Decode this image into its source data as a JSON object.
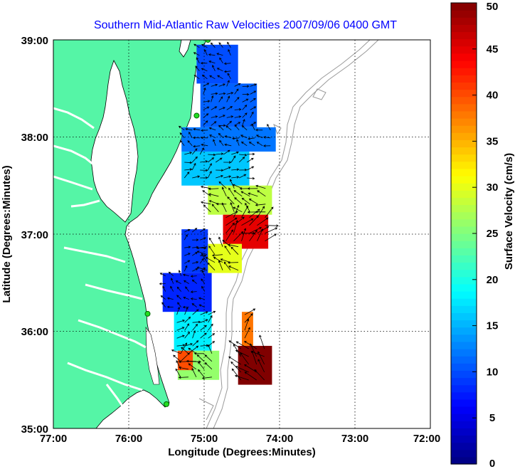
{
  "chart_data": {
    "type": "heatmap",
    "title": "Southern Mid-Atlantic Raw Velocities 2007/09/06 0400 GMT",
    "xlabel": "Longitude (Degrees:Minutes)",
    "ylabel": "Latitude (Degrees:Minutes)",
    "colorbar_label": "Surface Velocity (cm/s)",
    "x_ticks": [
      "77:00",
      "76:00",
      "75:00",
      "74:00",
      "73:00",
      "72:00"
    ],
    "y_ticks": [
      "39:00",
      "38:00",
      "37:00",
      "36:00",
      "35:00"
    ],
    "colorbar_ticks": [
      "50",
      "45",
      "40",
      "35",
      "30",
      "25",
      "20",
      "15",
      "10",
      "5",
      "0"
    ],
    "xlim": [
      -77,
      -72
    ],
    "ylim": [
      35,
      39
    ],
    "clim": [
      0,
      50
    ],
    "colormap": "jet",
    "grid": true,
    "land_color": "#55f5a6",
    "station_color": "#22dd22",
    "stations": [
      {
        "lon": -74.95,
        "lat": 39.0
      },
      {
        "lon": -75.1,
        "lat": 38.22
      },
      {
        "lon": -75.75,
        "lat": 36.18
      },
      {
        "lon": -75.5,
        "lat": 35.25
      }
    ],
    "regions": [
      {
        "lon_min": -75.1,
        "lon_max": -74.55,
        "lat_min": 38.55,
        "lat_max": 38.95,
        "speed": 10
      },
      {
        "lon_min": -75.05,
        "lon_max": -74.3,
        "lat_min": 38.1,
        "lat_max": 38.55,
        "speed": 11
      },
      {
        "lon_min": -75.3,
        "lon_max": -74.05,
        "lat_min": 37.85,
        "lat_max": 38.1,
        "speed": 12
      },
      {
        "lon_min": -75.3,
        "lon_max": -74.4,
        "lat_min": 37.5,
        "lat_max": 37.85,
        "speed": 16
      },
      {
        "lon_min": -74.95,
        "lon_max": -74.1,
        "lat_min": 37.2,
        "lat_max": 37.5,
        "speed": 28
      },
      {
        "lon_min": -74.75,
        "lon_max": -74.15,
        "lat_min": 36.85,
        "lat_max": 37.2,
        "speed": 45
      },
      {
        "lon_min": -75.0,
        "lon_max": -74.5,
        "lat_min": 36.6,
        "lat_max": 36.9,
        "speed": 30
      },
      {
        "lon_min": -75.3,
        "lon_max": -74.95,
        "lat_min": 36.6,
        "lat_max": 37.05,
        "speed": 9
      },
      {
        "lon_min": -75.55,
        "lon_max": -74.9,
        "lat_min": 36.2,
        "lat_max": 36.6,
        "speed": 8
      },
      {
        "lon_min": -75.4,
        "lon_max": -74.9,
        "lat_min": 35.8,
        "lat_max": 36.2,
        "speed": 18
      },
      {
        "lon_min": -75.35,
        "lon_max": -74.8,
        "lat_min": 35.5,
        "lat_max": 35.8,
        "speed": 26
      },
      {
        "lon_min": -75.35,
        "lon_max": -75.15,
        "lat_min": 35.6,
        "lat_max": 35.8,
        "speed": 40
      },
      {
        "lon_min": -74.55,
        "lon_max": -74.1,
        "lat_min": 35.45,
        "lat_max": 35.85,
        "speed": 50
      },
      {
        "lon_min": -74.5,
        "lon_max": -74.35,
        "lat_min": 35.85,
        "lat_max": 36.2,
        "speed": 38
      }
    ]
  }
}
